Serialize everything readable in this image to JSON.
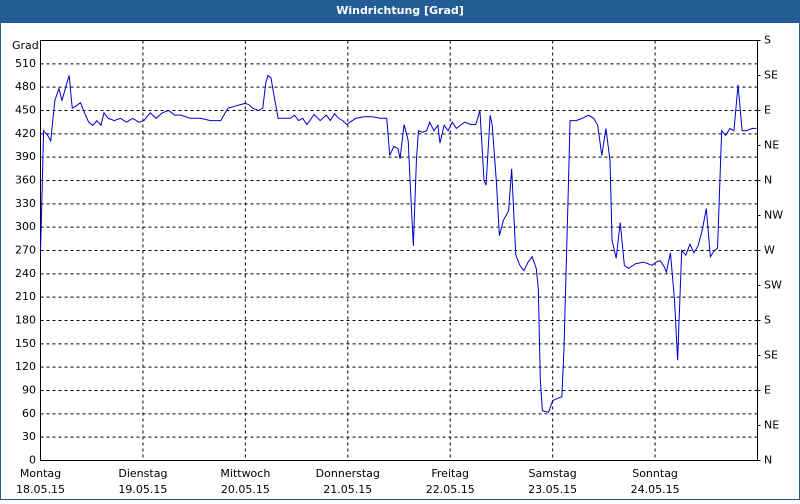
{
  "chart_data": {
    "type": "line",
    "title": "Windrichtung [Grad]",
    "y_label": "Grad",
    "xlim": [
      0,
      7
    ],
    "xticks": [
      {
        "value": 0,
        "label": "Montag",
        "date": "18.05.15"
      },
      {
        "value": 1,
        "label": "Dienstag",
        "date": "19.05.15"
      },
      {
        "value": 2,
        "label": "Mittwoch",
        "date": "20.05.15"
      },
      {
        "value": 3,
        "label": "Donnerstag",
        "date": "21.05.15"
      },
      {
        "value": 4,
        "label": "Freitag",
        "date": "22.05.15"
      },
      {
        "value": 5,
        "label": "Samstag",
        "date": "23.05.15"
      },
      {
        "value": 6,
        "label": "Sonntag",
        "date": "24.05.15"
      }
    ],
    "ylim": [
      0,
      540
    ],
    "yticks": [
      0,
      30,
      60,
      90,
      120,
      150,
      180,
      210,
      240,
      270,
      300,
      330,
      360,
      390,
      420,
      450,
      480,
      510
    ],
    "y2lim": [
      0,
      540
    ],
    "y2ticks": [
      {
        "value": 0,
        "label": "N"
      },
      {
        "value": 45,
        "label": "NE"
      },
      {
        "value": 90,
        "label": "E"
      },
      {
        "value": 135,
        "label": "SE"
      },
      {
        "value": 180,
        "label": "S"
      },
      {
        "value": 225,
        "label": "SW"
      },
      {
        "value": 270,
        "label": "W"
      },
      {
        "value": 315,
        "label": "NW"
      },
      {
        "value": 360,
        "label": "N"
      },
      {
        "value": 405,
        "label": "NE"
      },
      {
        "value": 450,
        "label": "E"
      },
      {
        "value": 495,
        "label": "SE"
      },
      {
        "value": 540,
        "label": "S"
      }
    ],
    "grid": true,
    "series": [
      {
        "color": "#0000cc",
        "x": [
          0,
          0.01,
          0.03,
          0.07,
          0.1,
          0.14,
          0.18,
          0.21,
          0.25,
          0.28,
          0.31,
          0.35,
          0.39,
          0.43,
          0.47,
          0.51,
          0.55,
          0.59,
          0.62,
          0.66,
          0.72,
          0.78,
          0.84,
          0.9,
          0.96,
          1.01,
          1.07,
          1.13,
          1.19,
          1.25,
          1.31,
          1.37,
          1.46,
          1.56,
          1.66,
          1.76,
          1.83,
          1.91,
          1.99,
          2.03,
          2.07,
          2.13,
          2.17,
          2.2,
          2.22,
          2.25,
          2.28,
          2.32,
          2.38,
          2.44,
          2.48,
          2.52,
          2.56,
          2.6,
          2.63,
          2.67,
          2.73,
          2.79,
          2.83,
          2.87,
          2.91,
          2.95,
          2.99,
          3.02,
          3.08,
          3.16,
          3.24,
          3.32,
          3.38,
          3.41,
          3.45,
          3.49,
          3.51,
          3.55,
          3.59,
          3.61,
          3.64,
          3.67,
          3.69,
          3.73,
          3.77,
          3.8,
          3.84,
          3.88,
          3.9,
          3.94,
          3.98,
          4.02,
          4.06,
          4.1,
          4.14,
          4.2,
          4.25,
          4.29,
          4.33,
          4.35,
          4.39,
          4.41,
          4.45,
          4.48,
          4.52,
          4.57,
          4.6,
          4.64,
          4.68,
          4.72,
          4.76,
          4.8,
          4.84,
          4.86,
          4.88,
          4.9,
          4.96,
          5,
          5.05,
          5.09,
          5.11,
          5.15,
          5.17,
          5.23,
          5.29,
          5.35,
          5.4,
          5.44,
          5.48,
          5.52,
          5.56,
          5.58,
          5.62,
          5.66,
          5.7,
          5.74,
          5.81,
          5.89,
          5.97,
          6.01,
          6.05,
          6.09,
          6.11,
          6.15,
          6.19,
          6.22,
          6.26,
          6.3,
          6.34,
          6.38,
          6.42,
          6.46,
          6.5,
          6.54,
          6.58,
          6.61,
          6.65,
          6.69,
          6.73,
          6.77,
          6.81,
          6.85,
          6.89,
          6.95,
          6.99
        ],
        "values": [
          270,
          315,
          424,
          418,
          411,
          463,
          478,
          463,
          482,
          495,
          453,
          456,
          460,
          447,
          435,
          431,
          437,
          431,
          447,
          440,
          437,
          440,
          435,
          440,
          435,
          437,
          447,
          440,
          447,
          450,
          444,
          444,
          440,
          440,
          437,
          437,
          453,
          456,
          459,
          458,
          453,
          450,
          453,
          486,
          495,
          492,
          469,
          440,
          440,
          440,
          444,
          437,
          440,
          432,
          437,
          445,
          437,
          444,
          437,
          446,
          440,
          437,
          432,
          435,
          440,
          442,
          442,
          440,
          440,
          392,
          404,
          401,
          388,
          432,
          411,
          354,
          276,
          386,
          424,
          422,
          424,
          435,
          424,
          431,
          408,
          431,
          424,
          435,
          427,
          431,
          435,
          432,
          432,
          450,
          360,
          354,
          444,
          431,
          360,
          289,
          309,
          321,
          375,
          264,
          251,
          244,
          255,
          262,
          247,
          221,
          103,
          64,
          62,
          77,
          80,
          82,
          141,
          334,
          437,
          437,
          440,
          444,
          440,
          431,
          392,
          427,
          386,
          283,
          260,
          306,
          251,
          247,
          253,
          255,
          251,
          255,
          257,
          249,
          242,
          267,
          206,
          129,
          270,
          264,
          278,
          267,
          276,
          296,
          324,
          262,
          270,
          273,
          424,
          418,
          427,
          424,
          483,
          424,
          424,
          427,
          427
        ]
      }
    ]
  }
}
